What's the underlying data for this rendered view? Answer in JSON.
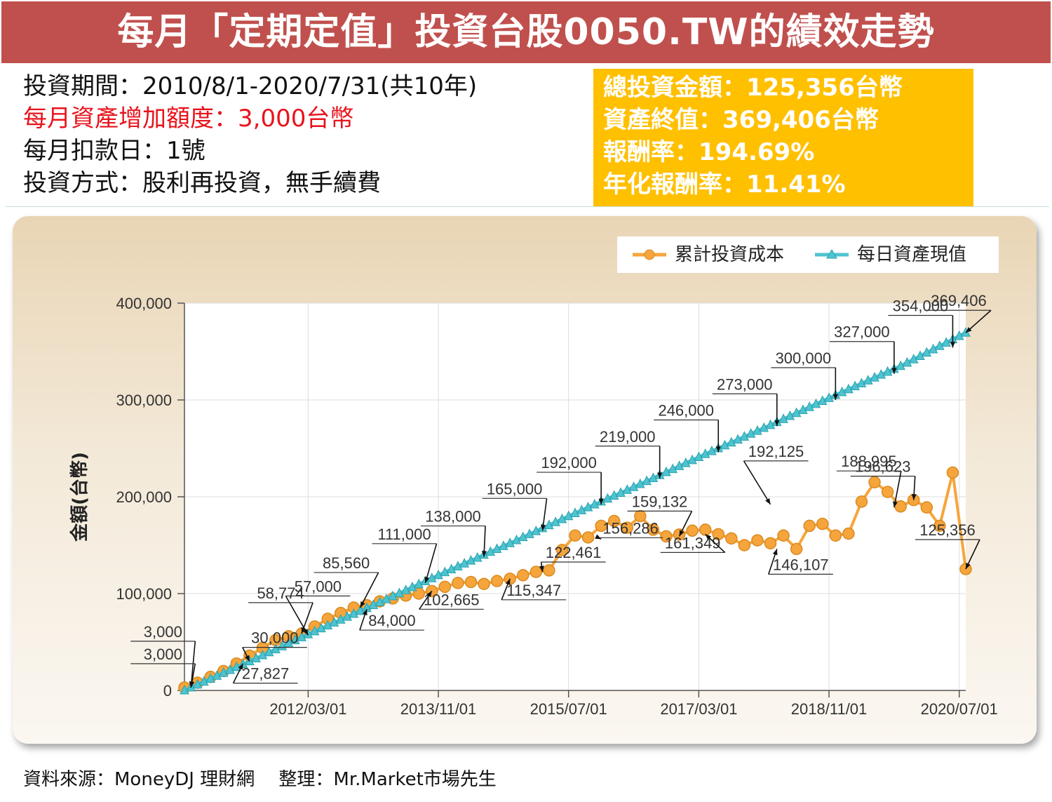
{
  "title": "每月「定期定值」投資台股0050.TW的績效走勢",
  "info": {
    "period": "投資期間：2010/8/1-2020/7/31(共10年)",
    "monthly_increase": "每月資產增加額度：3,000台幣",
    "debit_day": "每月扣款日：1號",
    "method": "投資方式：股利再投資，無手續費"
  },
  "summary": {
    "total_invested": "總投資金額：125,356台幣",
    "final_value": "資產終值：369,406台幣",
    "return": "報酬率：194.69%",
    "annualized_return": "年化報酬率：11.41%"
  },
  "source": "資料來源：MoneyDJ 理財網　 整理：Mr.Market市場先生",
  "colors": {
    "banner": "#c0504d",
    "box": "#ffc000",
    "cost": "#f6a53c",
    "value": "#4fc3d0"
  },
  "chart_data": {
    "type": "line",
    "ylabel": "金額(台幣)",
    "xlabel": "",
    "ylim": [
      0,
      400000
    ],
    "yticks": [
      "0",
      "100,000",
      "200,000",
      "300,000",
      "400,000"
    ],
    "ytick_values": [
      0,
      100000,
      200000,
      300000,
      400000
    ],
    "x_range_months": [
      0,
      120
    ],
    "xticks": [
      {
        "label": "2012/03/01",
        "month": 19
      },
      {
        "label": "2013/11/01",
        "month": 39
      },
      {
        "label": "2015/07/01",
        "month": 59
      },
      {
        "label": "2017/03/01",
        "month": 79
      },
      {
        "label": "2018/11/01",
        "month": 99
      },
      {
        "label": "2020/07/01",
        "month": 119
      }
    ],
    "legend": [
      {
        "name": "累計投資成本",
        "marker": "circle"
      },
      {
        "name": "每日資產現值",
        "marker": "triangle"
      }
    ],
    "series": [
      {
        "name": "累計投資成本",
        "month": [
          0,
          2,
          4,
          6,
          8,
          10,
          12,
          14,
          16,
          18,
          20,
          22,
          24,
          26,
          28,
          30,
          32,
          34,
          36,
          38,
          40,
          42,
          44,
          46,
          48,
          50,
          52,
          54,
          56,
          58,
          60,
          62,
          64,
          66,
          68,
          70,
          72,
          74,
          76,
          78,
          80,
          82,
          84,
          86,
          88,
          90,
          92,
          94,
          96,
          98,
          100,
          102,
          104,
          106,
          108,
          110,
          112,
          114,
          116,
          118,
          120
        ],
        "values": [
          3000,
          8000,
          14000,
          20000,
          27827,
          36000,
          44000,
          52000,
          56000,
          58774,
          66000,
          74000,
          80000,
          85560,
          88000,
          92000,
          95000,
          98000,
          100000,
          102665,
          107000,
          111000,
          112000,
          110000,
          113000,
          115347,
          119000,
          122461,
          124000,
          145000,
          160000,
          158000,
          170000,
          175000,
          168000,
          180000,
          166000,
          159132,
          161000,
          165000,
          166000,
          161349,
          157000,
          150000,
          155000,
          152000,
          160000,
          146107,
          170000,
          172000,
          160000,
          162000,
          195000,
          215000,
          205000,
          190000,
          196623,
          188995,
          170000,
          225000,
          125356
        ]
      },
      {
        "name": "每日資產現值",
        "month": [
          0,
          10,
          20,
          30,
          40,
          50,
          60,
          70,
          80,
          90,
          100,
          110,
          120
        ],
        "values": [
          0,
          30000,
          61000,
          91000,
          122000,
          152000,
          183000,
          213000,
          244000,
          274000,
          305000,
          335000,
          369406
        ]
      }
    ],
    "annotations": [
      {
        "text": "3,000",
        "month": 1,
        "value": 3000
      },
      {
        "text": "3,000",
        "month": 1,
        "value": 3000
      },
      {
        "text": "27,827",
        "month": 9,
        "value": 27827
      },
      {
        "text": "30,000",
        "month": 10,
        "value": 30000
      },
      {
        "text": "57,000",
        "month": 19,
        "value": 57000
      },
      {
        "text": "58,774",
        "month": 18,
        "value": 58774
      },
      {
        "text": "85,560",
        "month": 27,
        "value": 85560
      },
      {
        "text": "84,000",
        "month": 28,
        "value": 84000
      },
      {
        "text": "111,000",
        "month": 37,
        "value": 111000
      },
      {
        "text": "102,665",
        "month": 38,
        "value": 102665
      },
      {
        "text": "138,000",
        "month": 46,
        "value": 138000
      },
      {
        "text": "115,347",
        "month": 50,
        "value": 115347
      },
      {
        "text": "122,461",
        "month": 55,
        "value": 122461
      },
      {
        "text": "165,000",
        "month": 55,
        "value": 165000
      },
      {
        "text": "192,000",
        "month": 64,
        "value": 192000
      },
      {
        "text": "156,286",
        "month": 64,
        "value": 156286
      },
      {
        "text": "219,000",
        "month": 73,
        "value": 219000
      },
      {
        "text": "159,132",
        "month": 76,
        "value": 159132
      },
      {
        "text": "161,349",
        "month": 80,
        "value": 161349
      },
      {
        "text": "246,000",
        "month": 82,
        "value": 246000
      },
      {
        "text": "192,125",
        "month": 90,
        "value": 192125
      },
      {
        "text": "146,107",
        "month": 91,
        "value": 146107
      },
      {
        "text": "273,000",
        "month": 91,
        "value": 273000
      },
      {
        "text": "300,000",
        "month": 100,
        "value": 300000
      },
      {
        "text": "327,000",
        "month": 109,
        "value": 327000
      },
      {
        "text": "196,623",
        "month": 112,
        "value": 196623
      },
      {
        "text": "188,995",
        "month": 109,
        "value": 188995
      },
      {
        "text": "354,000",
        "month": 118,
        "value": 354000
      },
      {
        "text": "125,356",
        "month": 120,
        "value": 125356
      },
      {
        "text": "369,406",
        "month": 120,
        "value": 369406
      }
    ]
  }
}
